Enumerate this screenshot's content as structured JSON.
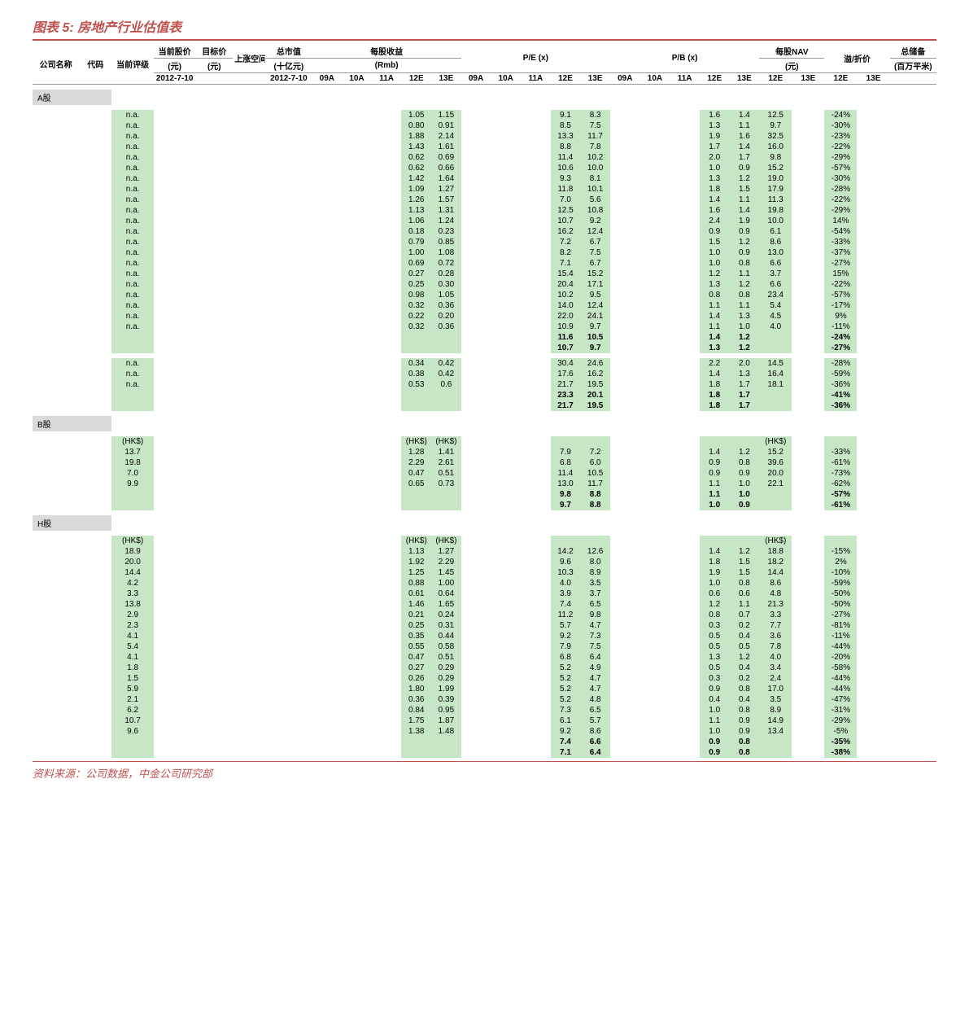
{
  "title": "图表 5: 房地产行业估值表",
  "source": "资料来源：公司数据，中金公司研究部",
  "colors": {
    "accent": "#c0504d",
    "green": "#c6e6c6",
    "gray": "#d9d9d9",
    "text": "#000000",
    "bg": "#ffffff"
  },
  "headers": {
    "company": "公司名称",
    "code": "代码",
    "rating": "当前评级",
    "price": "当前股价",
    "price_unit": "(元)",
    "price_date": "2012-7-10",
    "target": "目标价",
    "target_unit": "(元)",
    "upside": "上涨空间",
    "mcap": "总市值",
    "mcap_unit": "(十亿元)",
    "mcap_date": "2012-7-10",
    "eps": "每股收益",
    "eps_unit": "(Rmb)",
    "pe": "P/E (x)",
    "pb": "P/B (x)",
    "nav": "每股NAV",
    "nav_unit": "(元)",
    "premium": "溢/折价",
    "landbank": "总储备",
    "landbank_unit": "(百万平米)",
    "y09a": "09A",
    "y10a": "10A",
    "y11a": "11A",
    "y12e": "12E",
    "y13e": "13E"
  },
  "sections": [
    {
      "label": "A股",
      "rows": [
        {
          "rating": "n.a.",
          "eps12": "1.05",
          "eps13": "1.15",
          "pe12": "9.1",
          "pe13": "8.3",
          "pb12": "1.6",
          "pb13": "1.4",
          "nav12": "12.5",
          "prem12": "-24%"
        },
        {
          "rating": "n.a.",
          "eps12": "0.80",
          "eps13": "0.91",
          "pe12": "8.5",
          "pe13": "7.5",
          "pb12": "1.3",
          "pb13": "1.1",
          "nav12": "9.7",
          "prem12": "-30%"
        },
        {
          "rating": "n.a.",
          "eps12": "1.88",
          "eps13": "2.14",
          "pe12": "13.3",
          "pe13": "11.7",
          "pb12": "1.9",
          "pb13": "1.6",
          "nav12": "32.5",
          "prem12": "-23%"
        },
        {
          "rating": "n.a.",
          "eps12": "1.43",
          "eps13": "1.61",
          "pe12": "8.8",
          "pe13": "7.8",
          "pb12": "1.7",
          "pb13": "1.4",
          "nav12": "16.0",
          "prem12": "-22%"
        },
        {
          "rating": "n.a.",
          "eps12": "0.62",
          "eps13": "0.69",
          "pe12": "11.4",
          "pe13": "10.2",
          "pb12": "2.0",
          "pb13": "1.7",
          "nav12": "9.8",
          "prem12": "-29%"
        },
        {
          "rating": "n.a.",
          "eps12": "0.62",
          "eps13": "0.66",
          "pe12": "10.6",
          "pe13": "10.0",
          "pb12": "1.0",
          "pb13": "0.9",
          "nav12": "15.2",
          "prem12": "-57%"
        },
        {
          "rating": "n.a.",
          "eps12": "1.42",
          "eps13": "1.64",
          "pe12": "9.3",
          "pe13": "8.1",
          "pb12": "1.3",
          "pb13": "1.2",
          "nav12": "19.0",
          "prem12": "-30%"
        },
        {
          "rating": "n.a.",
          "eps12": "1.09",
          "eps13": "1.27",
          "pe12": "11.8",
          "pe13": "10.1",
          "pb12": "1.8",
          "pb13": "1.5",
          "nav12": "17.9",
          "prem12": "-28%"
        },
        {
          "rating": "n.a.",
          "eps12": "1.26",
          "eps13": "1.57",
          "pe12": "7.0",
          "pe13": "5.6",
          "pb12": "1.4",
          "pb13": "1.1",
          "nav12": "11.3",
          "prem12": "-22%"
        },
        {
          "rating": "n.a.",
          "eps12": "1.13",
          "eps13": "1.31",
          "pe12": "12.5",
          "pe13": "10.8",
          "pb12": "1.6",
          "pb13": "1.4",
          "nav12": "19.8",
          "prem12": "-29%"
        },
        {
          "rating": "n.a.",
          "eps12": "1.06",
          "eps13": "1.24",
          "pe12": "10.7",
          "pe13": "9.2",
          "pb12": "2.4",
          "pb13": "1.9",
          "nav12": "10.0",
          "prem12": "14%"
        },
        {
          "rating": "n.a.",
          "eps12": "0.18",
          "eps13": "0.23",
          "pe12": "16.2",
          "pe13": "12.4",
          "pb12": "0.9",
          "pb13": "0.9",
          "nav12": "6.1",
          "prem12": "-54%"
        },
        {
          "rating": "n.a.",
          "eps12": "0.79",
          "eps13": "0.85",
          "pe12": "7.2",
          "pe13": "6.7",
          "pb12": "1.5",
          "pb13": "1.2",
          "nav12": "8.6",
          "prem12": "-33%"
        },
        {
          "rating": "n.a.",
          "eps12": "1.00",
          "eps13": "1.08",
          "pe12": "8.2",
          "pe13": "7.5",
          "pb12": "1.0",
          "pb13": "0.9",
          "nav12": "13.0",
          "prem12": "-37%"
        },
        {
          "rating": "n.a.",
          "eps12": "0.69",
          "eps13": "0.72",
          "pe12": "7.1",
          "pe13": "6.7",
          "pb12": "1.0",
          "pb13": "0.8",
          "nav12": "6.6",
          "prem12": "-27%"
        },
        {
          "rating": "n.a.",
          "eps12": "0.27",
          "eps13": "0.28",
          "pe12": "15.4",
          "pe13": "15.2",
          "pb12": "1.2",
          "pb13": "1.1",
          "nav12": "3.7",
          "prem12": "15%"
        },
        {
          "rating": "n.a.",
          "eps12": "0.25",
          "eps13": "0.30",
          "pe12": "20.4",
          "pe13": "17.1",
          "pb12": "1.3",
          "pb13": "1.2",
          "nav12": "6.6",
          "prem12": "-22%"
        },
        {
          "rating": "n.a.",
          "eps12": "0.98",
          "eps13": "1.05",
          "pe12": "10.2",
          "pe13": "9.5",
          "pb12": "0.8",
          "pb13": "0.8",
          "nav12": "23.4",
          "prem12": "-57%"
        },
        {
          "rating": "n.a.",
          "eps12": "0.32",
          "eps13": "0.36",
          "pe12": "14.0",
          "pe13": "12.4",
          "pb12": "1.1",
          "pb13": "1.1",
          "nav12": "5.4",
          "prem12": "-17%"
        },
        {
          "rating": "n.a.",
          "eps12": "0.22",
          "eps13": "0.20",
          "pe12": "22.0",
          "pe13": "24.1",
          "pb12": "1.4",
          "pb13": "1.3",
          "nav12": "4.5",
          "prem12": "9%"
        },
        {
          "rating": "n.a.",
          "eps12": "0.32",
          "eps13": "0.36",
          "pe12": "10.9",
          "pe13": "9.7",
          "pb12": "1.1",
          "pb13": "1.0",
          "nav12": "4.0",
          "prem12": "-11%"
        },
        {
          "bold": true,
          "pe12": "11.6",
          "pe13": "10.5",
          "pb12": "1.4",
          "pb13": "1.2",
          "prem12": "-24%"
        },
        {
          "bold": true,
          "pe12": "10.7",
          "pe13": "9.7",
          "pb12": "1.3",
          "pb13": "1.2",
          "prem12": "-27%"
        }
      ]
    },
    {
      "label": "",
      "rows": [
        {
          "rating": "n.a.",
          "eps12": "0.34",
          "eps13": "0.42",
          "pe12": "30.4",
          "pe13": "24.6",
          "pb12": "2.2",
          "pb13": "2.0",
          "nav12": "14.5",
          "prem12": "-28%"
        },
        {
          "rating": "n.a.",
          "eps12": "0.38",
          "eps13": "0.42",
          "pe12": "17.6",
          "pe13": "16.2",
          "pb12": "1.4",
          "pb13": "1.3",
          "nav12": "16.4",
          "prem12": "-59%"
        },
        {
          "rating": "n.a.",
          "eps12": "0.53",
          "eps13": "0.6",
          "pe12": "21.7",
          "pe13": "19.5",
          "pb12": "1.8",
          "pb13": "1.7",
          "nav12": "18.1",
          "prem12": "-36%"
        },
        {
          "bold": true,
          "pe12": "23.3",
          "pe13": "20.1",
          "pb12": "1.8",
          "pb13": "1.7",
          "prem12": "-41%"
        },
        {
          "bold": true,
          "pe12": "21.7",
          "pe13": "19.5",
          "pb12": "1.8",
          "pb13": "1.7",
          "prem12": "-36%"
        }
      ]
    },
    {
      "label": "B股",
      "rows": [
        {
          "rating": "(HK$)",
          "eps12": "(HK$)",
          "eps13": "(HK$)",
          "nav12": "(HK$)"
        },
        {
          "rating": "13.7",
          "eps12": "1.28",
          "eps13": "1.41",
          "pe12": "7.9",
          "pe13": "7.2",
          "pb12": "1.4",
          "pb13": "1.2",
          "nav12": "15.2",
          "prem12": "-33%"
        },
        {
          "rating": "19.8",
          "eps12": "2.29",
          "eps13": "2.61",
          "pe12": "6.8",
          "pe13": "6.0",
          "pb12": "0.9",
          "pb13": "0.8",
          "nav12": "39.6",
          "prem12": "-61%"
        },
        {
          "rating": "7.0",
          "eps12": "0.47",
          "eps13": "0.51",
          "pe12": "11.4",
          "pe13": "10.5",
          "pb12": "0.9",
          "pb13": "0.9",
          "nav12": "20.0",
          "prem12": "-73%"
        },
        {
          "rating": "9.9",
          "eps12": "0.65",
          "eps13": "0.73",
          "pe12": "13.0",
          "pe13": "11.7",
          "pb12": "1.1",
          "pb13": "1.0",
          "nav12": "22.1",
          "prem12": "-62%"
        },
        {
          "bold": true,
          "pe12": "9.8",
          "pe13": "8.8",
          "pb12": "1.1",
          "pb13": "1.0",
          "prem12": "-57%"
        },
        {
          "bold": true,
          "pe12": "9.7",
          "pe13": "8.8",
          "pb12": "1.0",
          "pb13": "0.9",
          "prem12": "-61%"
        }
      ]
    },
    {
      "label": "H股",
      "rows": [
        {
          "rating": "(HK$)",
          "eps12": "(HK$)",
          "eps13": "(HK$)",
          "nav12": "(HK$)"
        },
        {
          "rating": "18.9",
          "eps12": "1.13",
          "eps13": "1.27",
          "pe12": "14.2",
          "pe13": "12.6",
          "pb12": "1.4",
          "pb13": "1.2",
          "nav12": "18.8",
          "prem12": "-15%"
        },
        {
          "rating": "20.0",
          "eps12": "1.92",
          "eps13": "2.29",
          "pe12": "9.6",
          "pe13": "8.0",
          "pb12": "1.8",
          "pb13": "1.5",
          "nav12": "18.2",
          "prem12": "2%"
        },
        {
          "rating": "14.4",
          "eps12": "1.25",
          "eps13": "1.45",
          "pe12": "10.3",
          "pe13": "8.9",
          "pb12": "1.9",
          "pb13": "1.5",
          "nav12": "14.4",
          "prem12": "-10%"
        },
        {
          "rating": "4.2",
          "eps12": "0.88",
          "eps13": "1.00",
          "pe12": "4.0",
          "pe13": "3.5",
          "pb12": "1.0",
          "pb13": "0.8",
          "nav12": "8.6",
          "prem12": "-59%"
        },
        {
          "rating": "3.3",
          "eps12": "0.61",
          "eps13": "0.64",
          "pe12": "3.9",
          "pe13": "3.7",
          "pb12": "0.6",
          "pb13": "0.6",
          "nav12": "4.8",
          "prem12": "-50%"
        },
        {
          "rating": "13.8",
          "eps12": "1.46",
          "eps13": "1.65",
          "pe12": "7.4",
          "pe13": "6.5",
          "pb12": "1.2",
          "pb13": "1.1",
          "nav12": "21.3",
          "prem12": "-50%"
        },
        {
          "rating": "2.9",
          "eps12": "0.21",
          "eps13": "0.24",
          "pe12": "11.2",
          "pe13": "9.8",
          "pb12": "0.8",
          "pb13": "0.7",
          "nav12": "3.3",
          "prem12": "-27%"
        },
        {
          "rating": "2.3",
          "eps12": "0.25",
          "eps13": "0.31",
          "pe12": "5.7",
          "pe13": "4.7",
          "pb12": "0.3",
          "pb13": "0.2",
          "nav12": "7.7",
          "prem12": "-81%"
        },
        {
          "rating": "4.1",
          "eps12": "0.35",
          "eps13": "0.44",
          "pe12": "9.2",
          "pe13": "7.3",
          "pb12": "0.5",
          "pb13": "0.4",
          "nav12": "3.6",
          "prem12": "-11%"
        },
        {
          "rating": "5.4",
          "eps12": "0.55",
          "eps13": "0.58",
          "pe12": "7.9",
          "pe13": "7.5",
          "pb12": "0.5",
          "pb13": "0.5",
          "nav12": "7.8",
          "prem12": "-44%"
        },
        {
          "rating": "4.1",
          "eps12": "0.47",
          "eps13": "0.51",
          "pe12": "6.8",
          "pe13": "6.4",
          "pb12": "1.3",
          "pb13": "1.2",
          "nav12": "4.0",
          "prem12": "-20%"
        },
        {
          "rating": "1.8",
          "eps12": "0.27",
          "eps13": "0.29",
          "pe12": "5.2",
          "pe13": "4.9",
          "pb12": "0.5",
          "pb13": "0.4",
          "nav12": "3.4",
          "prem12": "-58%"
        },
        {
          "rating": "1.5",
          "eps12": "0.26",
          "eps13": "0.29",
          "pe12": "5.2",
          "pe13": "4.7",
          "pb12": "0.3",
          "pb13": "0.2",
          "nav12": "2.4",
          "prem12": "-44%"
        },
        {
          "rating": "5.9",
          "eps12": "1.80",
          "eps13": "1.99",
          "pe12": "5.2",
          "pe13": "4.7",
          "pb12": "0.9",
          "pb13": "0.8",
          "nav12": "17.0",
          "prem12": "-44%"
        },
        {
          "rating": "2.1",
          "eps12": "0.36",
          "eps13": "0.39",
          "pe12": "5.2",
          "pe13": "4.8",
          "pb12": "0.4",
          "pb13": "0.4",
          "nav12": "3.5",
          "prem12": "-47%"
        },
        {
          "rating": "6.2",
          "eps12": "0.84",
          "eps13": "0.95",
          "pe12": "7.3",
          "pe13": "6.5",
          "pb12": "1.0",
          "pb13": "0.8",
          "nav12": "8.9",
          "prem12": "-31%"
        },
        {
          "rating": "10.7",
          "eps12": "1.75",
          "eps13": "1.87",
          "pe12": "6.1",
          "pe13": "5.7",
          "pb12": "1.1",
          "pb13": "0.9",
          "nav12": "14.9",
          "prem12": "-29%"
        },
        {
          "rating": "9.6",
          "eps12": "1.38",
          "eps13": "1.48",
          "pe12": "9.2",
          "pe13": "8.6",
          "pb12": "1.0",
          "pb13": "0.9",
          "nav12": "13.4",
          "prem12": "-5%"
        },
        {
          "bold": true,
          "pe12": "7.4",
          "pe13": "6.6",
          "pb12": "0.9",
          "pb13": "0.8",
          "prem12": "-35%"
        },
        {
          "bold": true,
          "pe12": "7.1",
          "pe13": "6.4",
          "pb12": "0.9",
          "pb13": "0.8",
          "prem12": "-38%"
        }
      ]
    }
  ]
}
